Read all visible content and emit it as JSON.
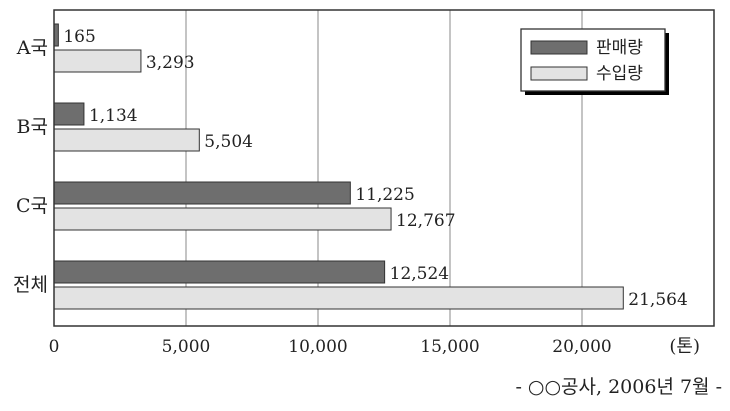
{
  "chart_data": {
    "type": "bar",
    "orientation": "horizontal",
    "categories": [
      "A국",
      "B국",
      "C국",
      "전체"
    ],
    "series": [
      {
        "name": "판매량",
        "values": [
          165,
          1134,
          11225,
          12524
        ],
        "color": "#6e6e6e"
      },
      {
        "name": "수입량",
        "values": [
          3293,
          5504,
          12767,
          21564
        ],
        "color": "#e3e3e3"
      }
    ],
    "value_labels": [
      [
        "165",
        "1,134",
        "11,225",
        "12,524"
      ],
      [
        "3,293",
        "5,504",
        "12,767",
        "21,564"
      ]
    ],
    "xlim": [
      0,
      25000
    ],
    "xticks": [
      0,
      5000,
      10000,
      15000,
      20000
    ],
    "xtick_labels": [
      "0",
      "5,000",
      "10,000",
      "15,000",
      "20,000"
    ],
    "unit_label": "(톤)",
    "grid": true,
    "legend_position": "top-right"
  },
  "source": "- ○○공사, 2006년 7월 -"
}
